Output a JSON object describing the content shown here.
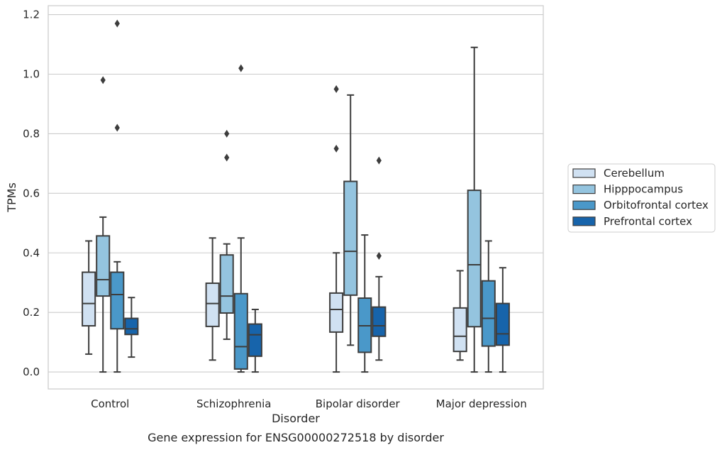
{
  "chart_data": {
    "type": "box",
    "caption": "Gene expression for ENSG00000272518 by disorder",
    "xlabel": "Disorder",
    "ylabel": "TPMs",
    "ylim": [
      -0.057,
      1.23
    ],
    "yticks": [
      0.0,
      0.2,
      0.4,
      0.6,
      0.8,
      1.0,
      1.2
    ],
    "ytick_labels": [
      "0.0",
      "0.2",
      "0.4",
      "0.6",
      "0.8",
      "1.0",
      "1.2"
    ],
    "grid": "horizontal",
    "legend_position": "right",
    "categories": [
      "Control",
      "Schizophrenia",
      "Bipolar disorder",
      "Major depression"
    ],
    "series": [
      {
        "name": "Cerebellum",
        "color": "#d0e1f2",
        "boxes": [
          {
            "whislo": 0.06,
            "q1": 0.155,
            "med": 0.23,
            "q3": 0.335,
            "whishi": 0.44,
            "fliers": []
          },
          {
            "whislo": 0.04,
            "q1": 0.153,
            "med": 0.23,
            "q3": 0.298,
            "whishi": 0.45,
            "fliers": []
          },
          {
            "whislo": 0.0,
            "q1": 0.134,
            "med": 0.21,
            "q3": 0.265,
            "whishi": 0.4,
            "fliers": [
              0.75,
              0.95
            ]
          },
          {
            "whislo": 0.04,
            "q1": 0.069,
            "med": 0.12,
            "q3": 0.215,
            "whishi": 0.34,
            "fliers": []
          }
        ]
      },
      {
        "name": "Hipppocampus",
        "color": "#94c4df",
        "boxes": [
          {
            "whislo": 0.0,
            "q1": 0.255,
            "med": 0.31,
            "q3": 0.457,
            "whishi": 0.52,
            "fliers": [
              0.98
            ]
          },
          {
            "whislo": 0.11,
            "q1": 0.198,
            "med": 0.255,
            "q3": 0.393,
            "whishi": 0.43,
            "fliers": [
              0.72,
              0.8
            ]
          },
          {
            "whislo": 0.09,
            "q1": 0.258,
            "med": 0.405,
            "q3": 0.64,
            "whishi": 0.93,
            "fliers": []
          },
          {
            "whislo": 0.0,
            "q1": 0.152,
            "med": 0.36,
            "q3": 0.61,
            "whishi": 1.09,
            "fliers": []
          }
        ]
      },
      {
        "name": "Orbitofrontal cortex",
        "color": "#4a98c9",
        "boxes": [
          {
            "whislo": 0.0,
            "q1": 0.145,
            "med": 0.26,
            "q3": 0.335,
            "whishi": 0.37,
            "fliers": [
              0.82,
              1.17
            ]
          },
          {
            "whislo": 0.0,
            "q1": 0.01,
            "med": 0.085,
            "q3": 0.263,
            "whishi": 0.45,
            "fliers": [
              1.02
            ]
          },
          {
            "whislo": 0.0,
            "q1": 0.066,
            "med": 0.155,
            "q3": 0.248,
            "whishi": 0.46,
            "fliers": []
          },
          {
            "whislo": 0.0,
            "q1": 0.087,
            "med": 0.18,
            "q3": 0.306,
            "whishi": 0.44,
            "fliers": []
          }
        ]
      },
      {
        "name": "Prefrontal cortex",
        "color": "#1764ab",
        "boxes": [
          {
            "whislo": 0.05,
            "q1": 0.126,
            "med": 0.145,
            "q3": 0.18,
            "whishi": 0.25,
            "fliers": []
          },
          {
            "whislo": 0.0,
            "q1": 0.053,
            "med": 0.125,
            "q3": 0.161,
            "whishi": 0.21,
            "fliers": []
          },
          {
            "whislo": 0.04,
            "q1": 0.12,
            "med": 0.155,
            "q3": 0.218,
            "whishi": 0.32,
            "fliers": [
              0.39,
              0.71
            ]
          },
          {
            "whislo": 0.0,
            "q1": 0.09,
            "med": 0.128,
            "q3": 0.23,
            "whishi": 0.35,
            "fliers": []
          }
        ]
      }
    ]
  }
}
